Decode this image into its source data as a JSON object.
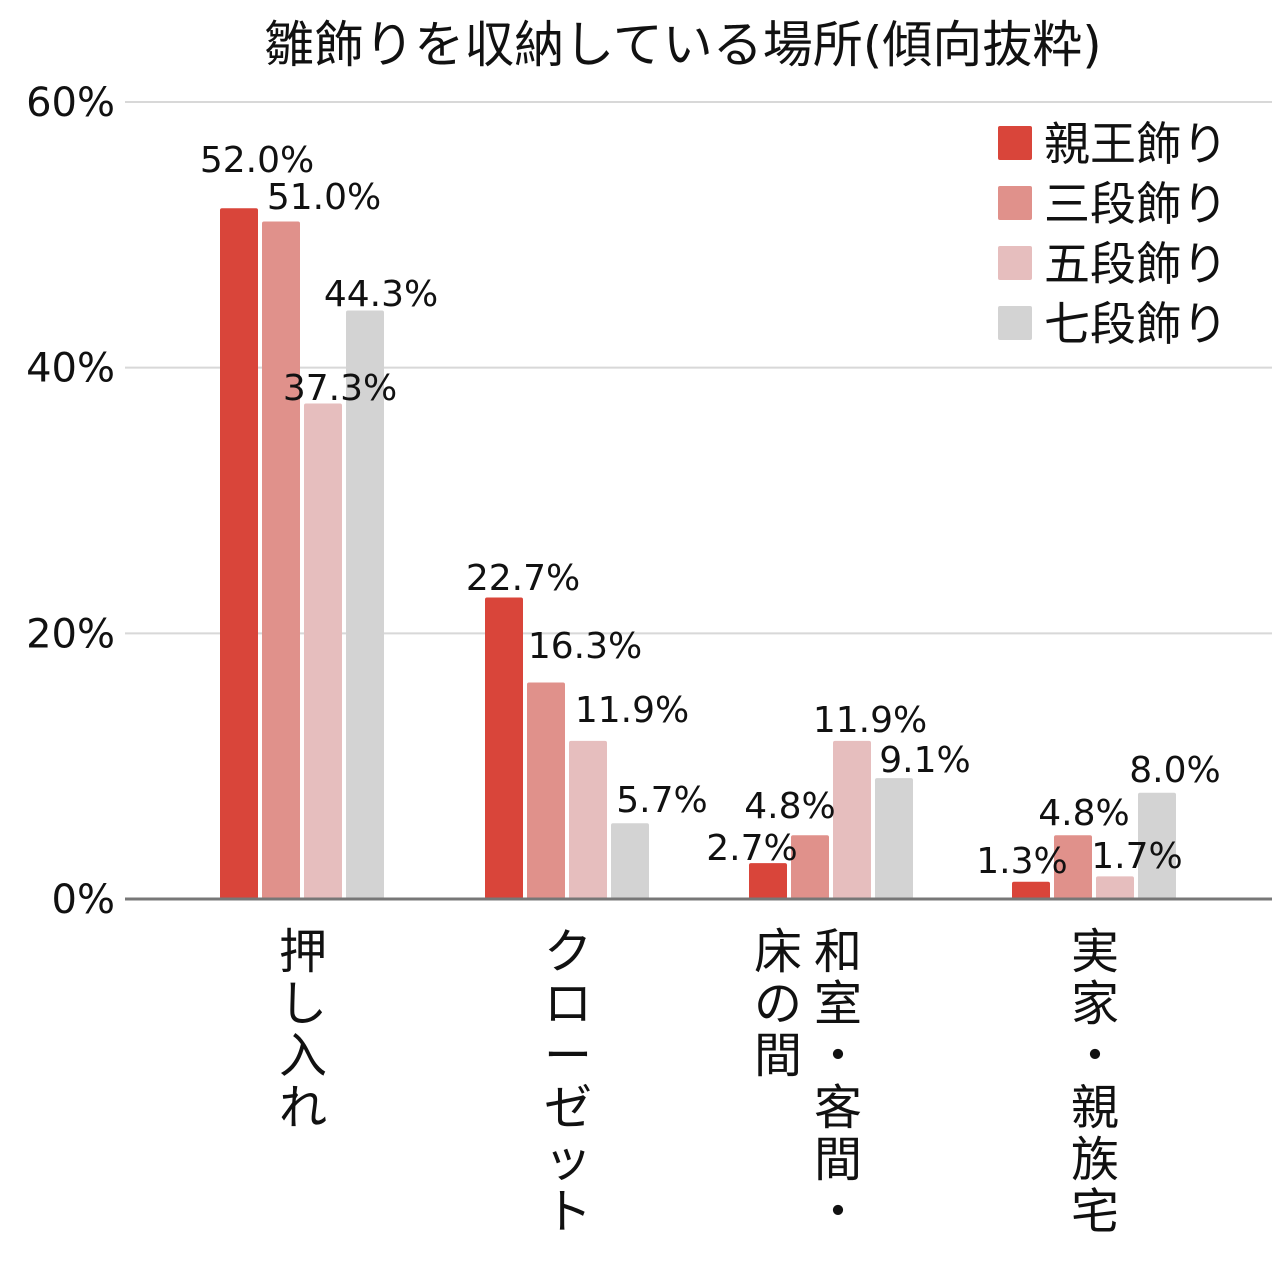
{
  "chart_data": {
    "type": "bar",
    "title": "雛飾りを収納している場所(傾向抜粋)",
    "categories": [
      "押し入れ",
      "クローゼット",
      "和室・客間・床の間",
      "実家・親族宅"
    ],
    "category_lines": [
      [
        "押し入れ"
      ],
      [
        "クローゼット"
      ],
      [
        "和室・客間・",
        "床の間"
      ],
      [
        "実家・親族宅"
      ]
    ],
    "series": [
      {
        "name": "親王飾り",
        "values": [
          52.0,
          22.7,
          2.7,
          1.3
        ],
        "labels": [
          "52.0%",
          "22.7%",
          "2.7%",
          "1.3%"
        ],
        "color": "#d9453a"
      },
      {
        "name": "三段飾り",
        "values": [
          51.0,
          16.3,
          4.8,
          4.8
        ],
        "labels": [
          "51.0%",
          "16.3%",
          "4.8%",
          "4.8%"
        ],
        "color": "#e0918b"
      },
      {
        "name": "五段飾り",
        "values": [
          37.3,
          11.9,
          11.9,
          1.7
        ],
        "labels": [
          "37.3%",
          "11.9%",
          "11.9%",
          "1.7%"
        ],
        "color": "#e6bebe"
      },
      {
        "name": "七段飾り",
        "values": [
          44.3,
          5.7,
          9.1,
          8.0
        ],
        "labels": [
          "44.3%",
          "5.7%",
          "9.1%",
          "8.0%"
        ],
        "color": "#d3d3d3"
      }
    ],
    "yticks": [
      0,
      20,
      40,
      60
    ],
    "ytick_labels": [
      "0%",
      "20%",
      "40%",
      "60%"
    ],
    "ylim": [
      0,
      60
    ],
    "grid": true,
    "legend_position": "top-right"
  }
}
